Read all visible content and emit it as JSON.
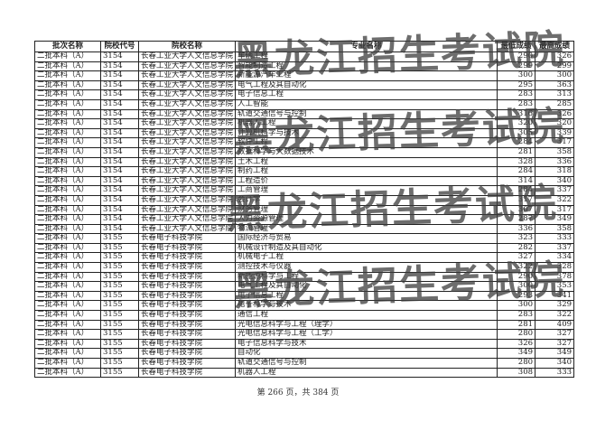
{
  "table": {
    "headers": [
      "批次名称",
      "院校代号",
      "院校名称",
      "专业名称",
      "最低成绩",
      "最高成绩"
    ],
    "rows": [
      [
        "二批本科（A）",
        "3154",
        "长春工业大学人文信息学院",
        "车辆工程",
        "290",
        "326"
      ],
      [
        "二批本科（A）",
        "3154",
        "长春工业大学人文信息学院",
        "智能制造工程",
        "299",
        "299"
      ],
      [
        "二批本科（A）",
        "3154",
        "长春工业大学人文信息学院",
        "新能源汽车工程",
        "300",
        "300"
      ],
      [
        "二批本科（A）",
        "3154",
        "长春工业大学人文信息学院",
        "电气工程及其自动化",
        "295",
        "363"
      ],
      [
        "二批本科（A）",
        "3154",
        "长春工业大学人文信息学院",
        "电子信息工程",
        "283",
        "313"
      ],
      [
        "二批本科（A）",
        "3154",
        "长春工业大学人文信息学院",
        "人工智能",
        "283",
        "285"
      ],
      [
        "二批本科（A）",
        "3154",
        "长春工业大学人文信息学院",
        "轨道交通信号与控制",
        "316",
        "326"
      ],
      [
        "二批本科（A）",
        "3154",
        "长春工业大学人文信息学院",
        "机器人工程",
        "320",
        "320"
      ],
      [
        "二批本科（A）",
        "3154",
        "长春工业大学人文信息学院",
        "计算机科学与技术",
        "305",
        "339"
      ],
      [
        "二批本科（A）",
        "3154",
        "长春工业大学人文信息学院",
        "软件工程",
        "284",
        "317"
      ],
      [
        "二批本科（A）",
        "3154",
        "长春工业大学人文信息学院",
        "数据科学与大数据技术",
        "281",
        "358"
      ],
      [
        "二批本科（A）",
        "3154",
        "长春工业大学人文信息学院",
        "土木工程",
        "328",
        "336"
      ],
      [
        "二批本科（A）",
        "3154",
        "长春工业大学人文信息学院",
        "制药工程",
        "284",
        "318"
      ],
      [
        "二批本科（A）",
        "3154",
        "长春工业大学人文信息学院",
        "工程造价",
        "314",
        "340"
      ],
      [
        "二批本科（A）",
        "3154",
        "长春工业大学人文信息学院",
        "工商管理",
        "284",
        "337"
      ],
      [
        "二批本科（A）",
        "3154",
        "长春工业大学人文信息学院",
        "会计学",
        "317",
        "322"
      ],
      [
        "二批本科（A）",
        "3154",
        "长春工业大学人文信息学院",
        "财务管理",
        "307",
        "317"
      ],
      [
        "二批本科（A）",
        "3154",
        "长春工业大学人文信息学院",
        "人力资源管理",
        "287",
        "349"
      ],
      [
        "二批本科（A）",
        "3154",
        "长春工业大学人文信息学院",
        "物流管理",
        "336",
        "358"
      ],
      [
        "二批本科（A）",
        "3155",
        "长春电子科技学院",
        "国际经济与贸易",
        "323",
        "333"
      ],
      [
        "二批本科（A）",
        "3155",
        "长春电子科技学院",
        "机械设计制造及其自动化",
        "282",
        "337"
      ],
      [
        "二批本科（A）",
        "3155",
        "长春电子科技学院",
        "机械电子工程",
        "327",
        "334"
      ],
      [
        "二批本科（A）",
        "3155",
        "长春电子科技学院",
        "测控技术与仪器",
        "322",
        "328"
      ],
      [
        "二批本科（A）",
        "3155",
        "长春电子科技学院",
        "新能源科学与工程",
        "290",
        "378"
      ],
      [
        "二批本科（A）",
        "3155",
        "长春电子科技学院",
        "电气工程及其自动化",
        "300",
        "353"
      ],
      [
        "二批本科（A）",
        "3155",
        "长春电子科技学院",
        "电子信息工程",
        "293",
        "341"
      ],
      [
        "二批本科（A）",
        "3155",
        "长春电子科技学院",
        "电子科学与技术",
        "300",
        "329"
      ],
      [
        "二批本科（A）",
        "3155",
        "长春电子科技学院",
        "通信工程",
        "283",
        "322"
      ],
      [
        "二批本科（A）",
        "3155",
        "长春电子科技学院",
        "光电信息科学与工程（理学）",
        "281",
        "409"
      ],
      [
        "二批本科（A）",
        "3155",
        "长春电子科技学院",
        "光电信息科学与工程（工学）",
        "280",
        "327"
      ],
      [
        "二批本科（A）",
        "3155",
        "长春电子科技学院",
        "电子信息科学与技术",
        "326",
        "327"
      ],
      [
        "二批本科（A）",
        "3155",
        "长春电子科技学院",
        "自动化",
        "349",
        "349"
      ],
      [
        "二批本科（A）",
        "3155",
        "长春电子科技学院",
        "轨道交通信号与控制",
        "280",
        "340"
      ],
      [
        "二批本科（A）",
        "3155",
        "长春电子科技学院",
        "机器人工程",
        "308",
        "333"
      ]
    ]
  },
  "watermark": "黑龙江招生考试院",
  "footer": "第 266 页，共 384 页"
}
